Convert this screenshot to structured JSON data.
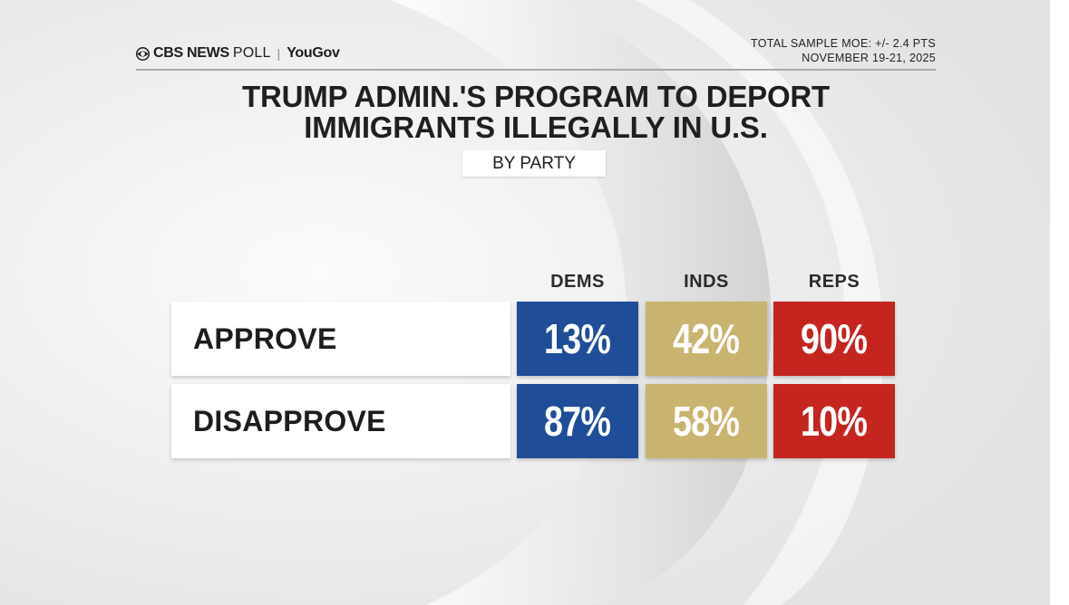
{
  "header": {
    "brand_primary": "CBS NEWS",
    "brand_secondary": "POLL",
    "brand_separator": "|",
    "brand_partner": "YouGov",
    "moe": "TOTAL SAMPLE MOE: +/- 2.4 PTS",
    "dates": "NOVEMBER 19-21, 2025"
  },
  "chart_data": {
    "type": "table",
    "title_lines": [
      "TRUMP ADMIN.'S PROGRAM TO DEPORT",
      "IMMIGRANTS ILLEGALLY IN U.S."
    ],
    "subtitle": "BY PARTY",
    "columns": [
      {
        "name": "DEMS",
        "color": "#1f4d98"
      },
      {
        "name": "INDS",
        "color": "#c9b46f"
      },
      {
        "name": "REPS",
        "color": "#c4251f"
      }
    ],
    "rows": [
      {
        "label": "APPROVE",
        "values": [
          13,
          42,
          90
        ]
      },
      {
        "label": "DISAPPROVE",
        "values": [
          87,
          58,
          10
        ]
      }
    ],
    "value_suffix": "%"
  }
}
